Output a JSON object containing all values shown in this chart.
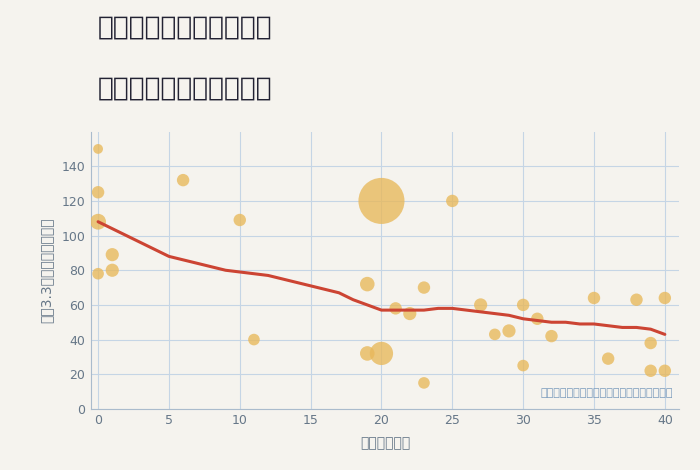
{
  "title_line1": "奈良県奈良市三条本町の",
  "title_line2": "築年数別中古戸建て価格",
  "xlabel": "築年数（年）",
  "ylabel": "坪（3.3㎡）単価（万円）",
  "bg_color": "#f5f3ee",
  "plot_bg_color": "#f5f3ee",
  "bubble_color": "#e8b85a",
  "bubble_alpha": 0.78,
  "line_color": "#cc4433",
  "line_width": 2.2,
  "xlim": [
    -0.5,
    41
  ],
  "ylim": [
    0,
    160
  ],
  "scatter_x": [
    0,
    0,
    0,
    0,
    1,
    1,
    6,
    10,
    11,
    19,
    19,
    20,
    20,
    21,
    22,
    23,
    23,
    25,
    27,
    28,
    29,
    30,
    30,
    31,
    32,
    35,
    36,
    38,
    39,
    39,
    40,
    40
  ],
  "scatter_y": [
    150,
    125,
    108,
    78,
    89,
    80,
    132,
    109,
    40,
    72,
    32,
    120,
    32,
    58,
    55,
    70,
    15,
    120,
    60,
    43,
    45,
    60,
    25,
    52,
    42,
    64,
    29,
    63,
    38,
    22,
    64,
    22
  ],
  "scatter_s": [
    50,
    80,
    130,
    70,
    90,
    90,
    80,
    80,
    70,
    110,
    110,
    1100,
    280,
    80,
    90,
    80,
    70,
    80,
    90,
    70,
    90,
    80,
    70,
    80,
    80,
    80,
    80,
    80,
    80,
    80,
    80,
    80
  ],
  "trend_x": [
    0,
    1,
    2,
    3,
    4,
    5,
    6,
    7,
    8,
    9,
    10,
    11,
    12,
    13,
    14,
    15,
    16,
    17,
    18,
    19,
    20,
    21,
    22,
    23,
    24,
    25,
    26,
    27,
    28,
    29,
    30,
    31,
    32,
    33,
    34,
    35,
    36,
    37,
    38,
    39,
    40
  ],
  "trend_y": [
    108,
    104,
    100,
    96,
    92,
    88,
    86,
    84,
    82,
    80,
    79,
    78,
    77,
    75,
    73,
    71,
    69,
    67,
    63,
    60,
    57,
    57,
    57,
    57,
    58,
    58,
    57,
    56,
    55,
    54,
    52,
    51,
    50,
    50,
    49,
    49,
    48,
    47,
    47,
    46,
    43
  ],
  "annotation": "円の大きさは、取引のあった物件面積を示す",
  "annotation_color": "#7799bb",
  "xticks": [
    0,
    5,
    10,
    15,
    20,
    25,
    30,
    35,
    40
  ],
  "yticks": [
    0,
    20,
    40,
    60,
    80,
    100,
    120,
    140
  ],
  "grid_color": "#c5d5e5",
  "title_fontsize": 19,
  "label_fontsize": 10,
  "tick_fontsize": 9,
  "tick_color": "#667788",
  "label_color": "#667788",
  "spine_color": "#aabbcc"
}
